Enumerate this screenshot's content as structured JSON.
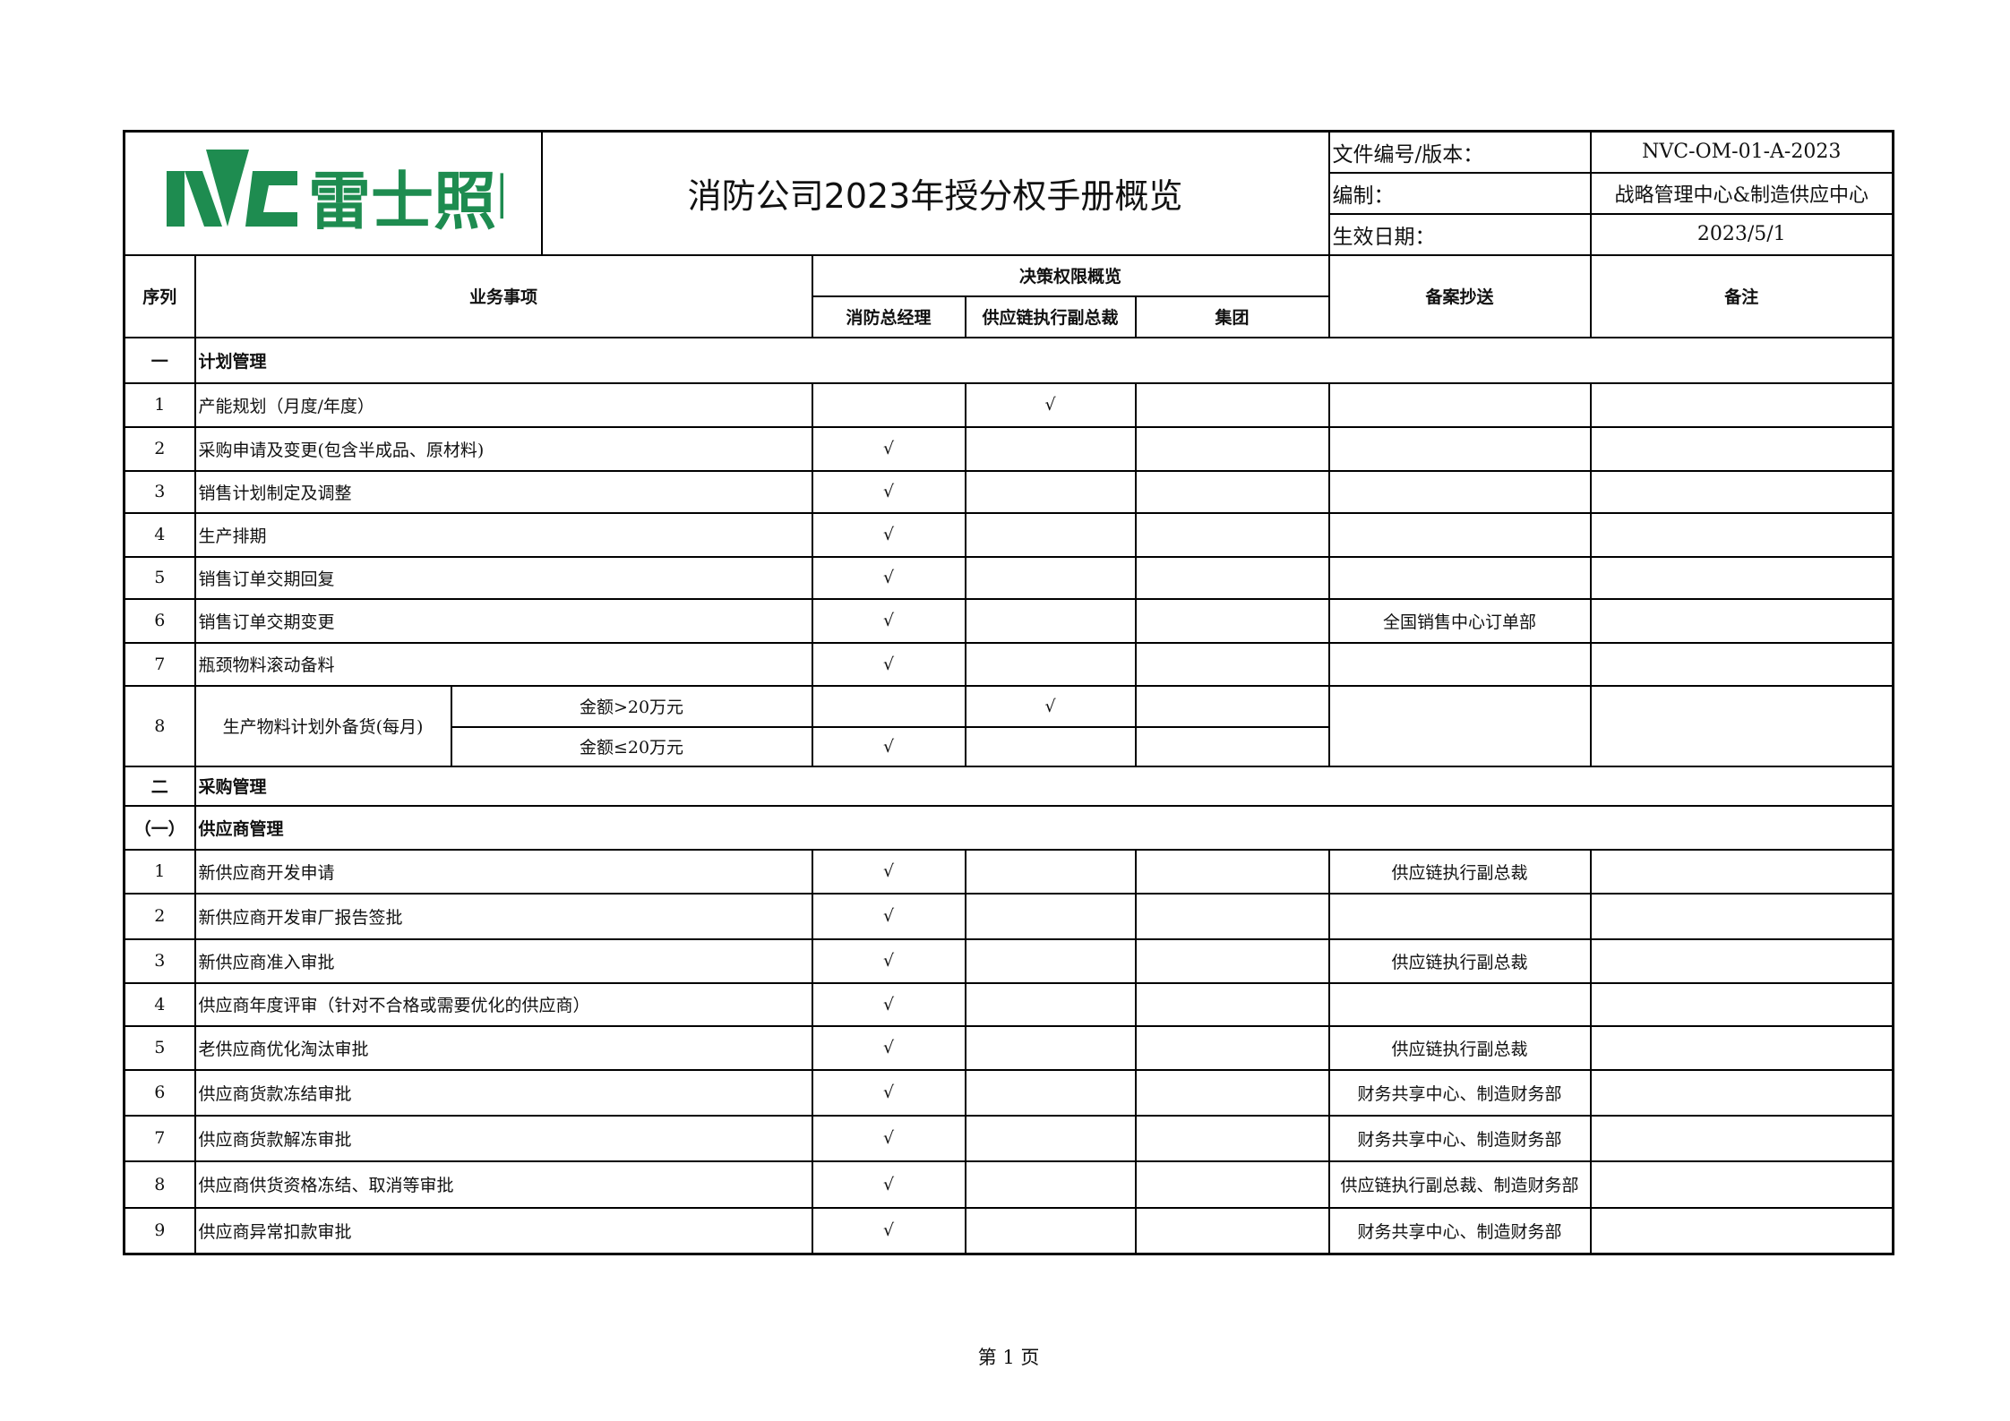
{
  "logo": {
    "text": "雷士照明",
    "brand_mark": "NVC",
    "color": "#1e8c50"
  },
  "title": "消防公司2023年授分权手册概览",
  "meta": [
    {
      "label": "文件编号/版本：",
      "value": "NVC-OM-01-A-2023"
    },
    {
      "label": "编制：",
      "value": "战略管理中心&制造供应中心"
    },
    {
      "label": "生效日期：",
      "value": "2023/5/1"
    }
  ],
  "headers": {
    "seq": "序列",
    "item": "业务事项",
    "authority": "决策权限概览",
    "gm": "消防总经理",
    "svp": "供应链执行副总裁",
    "group": "集团",
    "cc": "备案抄送",
    "note": "备注"
  },
  "check_mark": "√",
  "rows": [
    {
      "type": "section",
      "seq": "一",
      "text": "计划管理"
    },
    {
      "type": "item",
      "seq": "1",
      "text": "产能规划（月度/年度）",
      "gm": "",
      "svp": "√",
      "group": "",
      "cc": "",
      "note": ""
    },
    {
      "type": "item",
      "seq": "2",
      "text": "采购申请及变更(包含半成品、原材料)",
      "gm": "√",
      "svp": "",
      "group": "",
      "cc": "",
      "note": ""
    },
    {
      "type": "item",
      "seq": "3",
      "text": "销售计划制定及调整",
      "gm": "√",
      "svp": "",
      "group": "",
      "cc": "",
      "note": ""
    },
    {
      "type": "item",
      "seq": "4",
      "text": "生产排期",
      "gm": "√",
      "svp": "",
      "group": "",
      "cc": "",
      "note": ""
    },
    {
      "type": "item",
      "seq": "5",
      "text": "销售订单交期回复",
      "gm": "√",
      "svp": "",
      "group": "",
      "cc": "",
      "note": ""
    },
    {
      "type": "item",
      "seq": "6",
      "text": "销售订单交期变更",
      "gm": "√",
      "svp": "",
      "group": "",
      "cc": "全国销售中心订单部",
      "note": ""
    },
    {
      "type": "item",
      "seq": "7",
      "text": "瓶颈物料滚动备料",
      "gm": "√",
      "svp": "",
      "group": "",
      "cc": "",
      "note": ""
    },
    {
      "type": "split",
      "seq": "8",
      "text": "生产物料计划外备货(每月)",
      "cc": "",
      "note": "",
      "subs": [
        {
          "label": "金额>20万元",
          "gm": "",
          "svp": "√",
          "group": ""
        },
        {
          "label": "金额≤20万元",
          "gm": "√",
          "svp": "",
          "group": ""
        }
      ]
    },
    {
      "type": "section",
      "seq": "二",
      "text": "采购管理"
    },
    {
      "type": "section",
      "seq": "（一）",
      "text": "供应商管理"
    },
    {
      "type": "item",
      "seq": "1",
      "text": "新供应商开发申请",
      "gm": "√",
      "svp": "",
      "group": "",
      "cc": "供应链执行副总裁",
      "note": ""
    },
    {
      "type": "item",
      "seq": "2",
      "text": "新供应商开发审厂报告签批",
      "gm": "√",
      "svp": "",
      "group": "",
      "cc": "",
      "note": ""
    },
    {
      "type": "item",
      "seq": "3",
      "text": "新供应商准入审批",
      "gm": "√",
      "svp": "",
      "group": "",
      "cc": "供应链执行副总裁",
      "note": ""
    },
    {
      "type": "item",
      "seq": "4",
      "text": "供应商年度评审（针对不合格或需要优化的供应商）",
      "gm": "√",
      "svp": "",
      "group": "",
      "cc": "",
      "note": ""
    },
    {
      "type": "item",
      "seq": "5",
      "text": "老供应商优化淘汰审批",
      "gm": "√",
      "svp": "",
      "group": "",
      "cc": "供应链执行副总裁",
      "note": ""
    },
    {
      "type": "item",
      "seq": "6",
      "text": "供应商货款冻结审批",
      "gm": "√",
      "svp": "",
      "group": "",
      "cc": "财务共享中心、制造财务部",
      "note": ""
    },
    {
      "type": "item",
      "seq": "7",
      "text": "供应商货款解冻审批",
      "gm": "√",
      "svp": "",
      "group": "",
      "cc": "财务共享中心、制造财务部",
      "note": ""
    },
    {
      "type": "item",
      "seq": "8",
      "text": "供应商供货资格冻结、取消等审批",
      "gm": "√",
      "svp": "",
      "group": "",
      "cc": "供应链执行副总裁、制造财务部",
      "note": ""
    },
    {
      "type": "item",
      "seq": "9",
      "text": "供应商异常扣款审批",
      "gm": "√",
      "svp": "",
      "group": "",
      "cc": "财务共享中心、制造财务部",
      "note": ""
    }
  ],
  "footer": "第 1 页"
}
